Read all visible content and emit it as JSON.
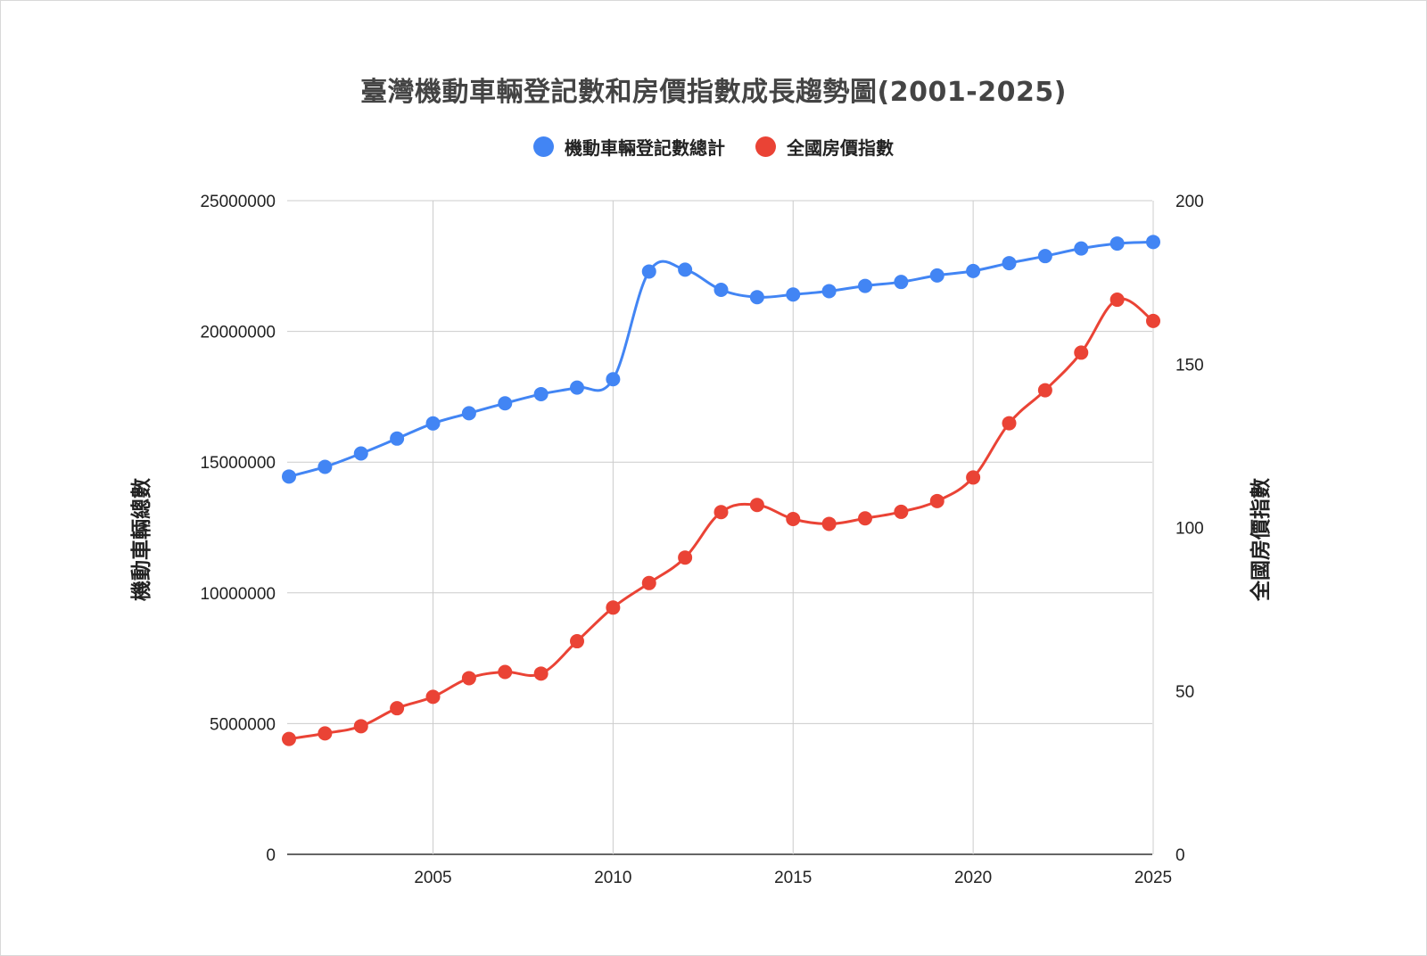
{
  "chart_data": {
    "type": "line",
    "title": "臺灣機動車輛登記數和房價指數成長趨勢圖(2001-2025)",
    "x": [
      2001,
      2002,
      2003,
      2004,
      2005,
      2006,
      2007,
      2008,
      2009,
      2010,
      2011,
      2012,
      2013,
      2014,
      2015,
      2016,
      2017,
      2018,
      2019,
      2020,
      2021,
      2022,
      2023,
      2024,
      2025
    ],
    "x_ticks": [
      2005,
      2010,
      2015,
      2020,
      2025
    ],
    "xlim": [
      2001,
      2025
    ],
    "y_left": {
      "label": "機動車輛總數",
      "ylim": [
        0,
        25000000
      ],
      "ticks": [
        0,
        5000000,
        10000000,
        15000000,
        20000000,
        25000000
      ]
    },
    "y_right": {
      "label": "全國房價指數",
      "ylim": [
        0,
        200
      ],
      "ticks": [
        0,
        50,
        100,
        150,
        200
      ]
    },
    "legend_position": "top",
    "grid": true,
    "series": [
      {
        "name": "機動車輛登記數總計",
        "axis": "left",
        "color": "#4285f4",
        "values": [
          14450000,
          14820000,
          15330000,
          15900000,
          16480000,
          16870000,
          17250000,
          17600000,
          17850000,
          18170000,
          22290000,
          22360000,
          21590000,
          21310000,
          21410000,
          21540000,
          21740000,
          21890000,
          22140000,
          22310000,
          22610000,
          22880000,
          23170000,
          23360000,
          23420000
        ]
      },
      {
        "name": "全國房價指數",
        "axis": "right",
        "color": "#ea4335",
        "values": [
          35.3,
          37.0,
          39.2,
          44.7,
          48.2,
          53.9,
          55.8,
          55.3,
          65.2,
          75.5,
          83.0,
          90.8,
          104.7,
          106.9,
          102.6,
          101.1,
          102.8,
          104.8,
          108.1,
          115.3,
          131.9,
          142.0,
          153.5,
          169.7,
          163.2
        ]
      }
    ]
  }
}
